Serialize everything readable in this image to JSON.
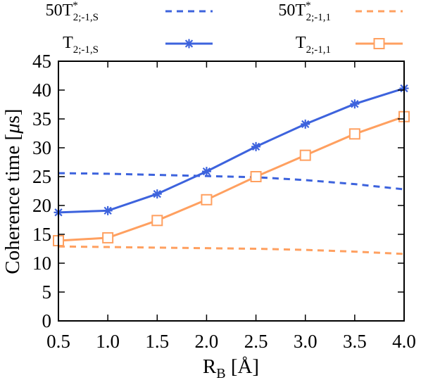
{
  "chart_data": {
    "type": "line",
    "x": [
      0.5,
      1.0,
      1.5,
      2.0,
      2.5,
      3.0,
      3.5,
      4.0
    ],
    "xticks": [
      "0.5",
      "1.0",
      "1.5",
      "2.0",
      "2.5",
      "3.0",
      "3.5",
      "4.0"
    ],
    "yticks": [
      "0",
      "5",
      "10",
      "15",
      "20",
      "25",
      "30",
      "35",
      "40",
      "45"
    ],
    "xlim": [
      0.5,
      4.0
    ],
    "ylim": [
      0,
      45
    ],
    "xlabel": {
      "main": "R",
      "sub": "B",
      "unit": " [Å]"
    },
    "ylabel": {
      "main": "Coherence time  [",
      "mu": "μ",
      "unit": "s]"
    },
    "grid": false,
    "legend_position": "top",
    "series": [
      {
        "label": {
          "prefix": "50T",
          "sup": "*",
          "sub": "2;-1,S"
        },
        "color": "#3d63dd",
        "style": "dashed",
        "marker": "none",
        "values": [
          25.6,
          25.5,
          25.3,
          25.1,
          24.9,
          24.4,
          23.7,
          22.8
        ]
      },
      {
        "label": {
          "prefix": "50T",
          "sup": "*",
          "sub": "2;-1,1"
        },
        "color": "#ffa060",
        "style": "dashed",
        "marker": "none",
        "values": [
          12.9,
          12.8,
          12.7,
          12.6,
          12.5,
          12.3,
          12.0,
          11.6
        ]
      },
      {
        "label": {
          "prefix": "T",
          "sup": "",
          "sub": "2;-1,S"
        },
        "color": "#3d63dd",
        "style": "solid",
        "marker": "asterisk",
        "values": [
          18.8,
          19.1,
          22.0,
          25.9,
          30.2,
          34.1,
          37.6,
          40.3
        ]
      },
      {
        "label": {
          "prefix": "T",
          "sup": "",
          "sub": "2;-1,1"
        },
        "color": "#ffa060",
        "style": "solid",
        "marker": "square",
        "values": [
          13.9,
          14.4,
          17.4,
          21.0,
          25.0,
          28.7,
          32.4,
          35.4
        ]
      }
    ]
  }
}
